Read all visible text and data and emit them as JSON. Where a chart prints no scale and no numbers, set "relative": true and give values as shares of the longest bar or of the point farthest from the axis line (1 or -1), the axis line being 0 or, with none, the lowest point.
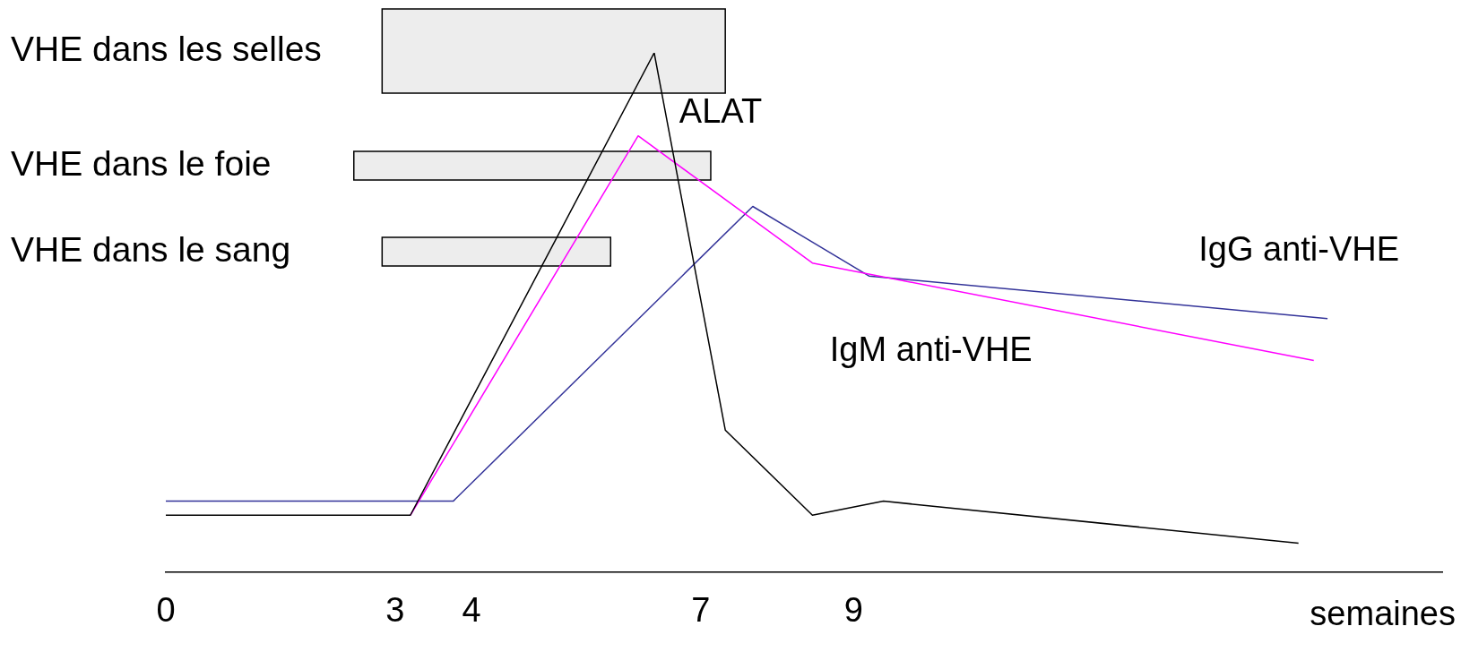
{
  "chart_data": {
    "type": "line",
    "relative": true,
    "xlabel": "semaines",
    "xlim": [
      0,
      16.7
    ],
    "xticks": [
      0,
      3,
      4,
      7,
      9
    ],
    "grid": false,
    "legend": false,
    "marker": "none",
    "series": [
      {
        "name": "ALAT",
        "color": "#000000",
        "x": [
          0,
          3.2,
          6.39,
          7.32,
          8.46,
          9.39,
          14.82
        ],
        "values": [
          0.109,
          0.109,
          1,
          0.273,
          0.109,
          0.136,
          0.055
        ]
      },
      {
        "name": "IgM anti-VHE",
        "color": "#ff00ff",
        "x": [
          3.2,
          6.18,
          8.46,
          15.02
        ],
        "values": [
          0.109,
          0.84,
          0.595,
          0.407
        ]
      },
      {
        "name": "IgG anti-VHE",
        "color": "#333399",
        "x": [
          0,
          3.76,
          7.68,
          9.2,
          15.2
        ],
        "values": [
          0.136,
          0.136,
          0.704,
          0.57,
          0.488
        ]
      }
    ],
    "bands": [
      {
        "axis": "x",
        "from": 2.83,
        "to": 7.32,
        "label": "VHE dans les selles",
        "color": "#000000"
      },
      {
        "axis": "x",
        "from": 2.46,
        "to": 7.13,
        "label": "VHE dans le foie",
        "color": "#000000"
      },
      {
        "axis": "x",
        "from": 2.83,
        "to": 5.82,
        "label": "VHE dans le sang",
        "color": "#000000"
      }
    ]
  }
}
